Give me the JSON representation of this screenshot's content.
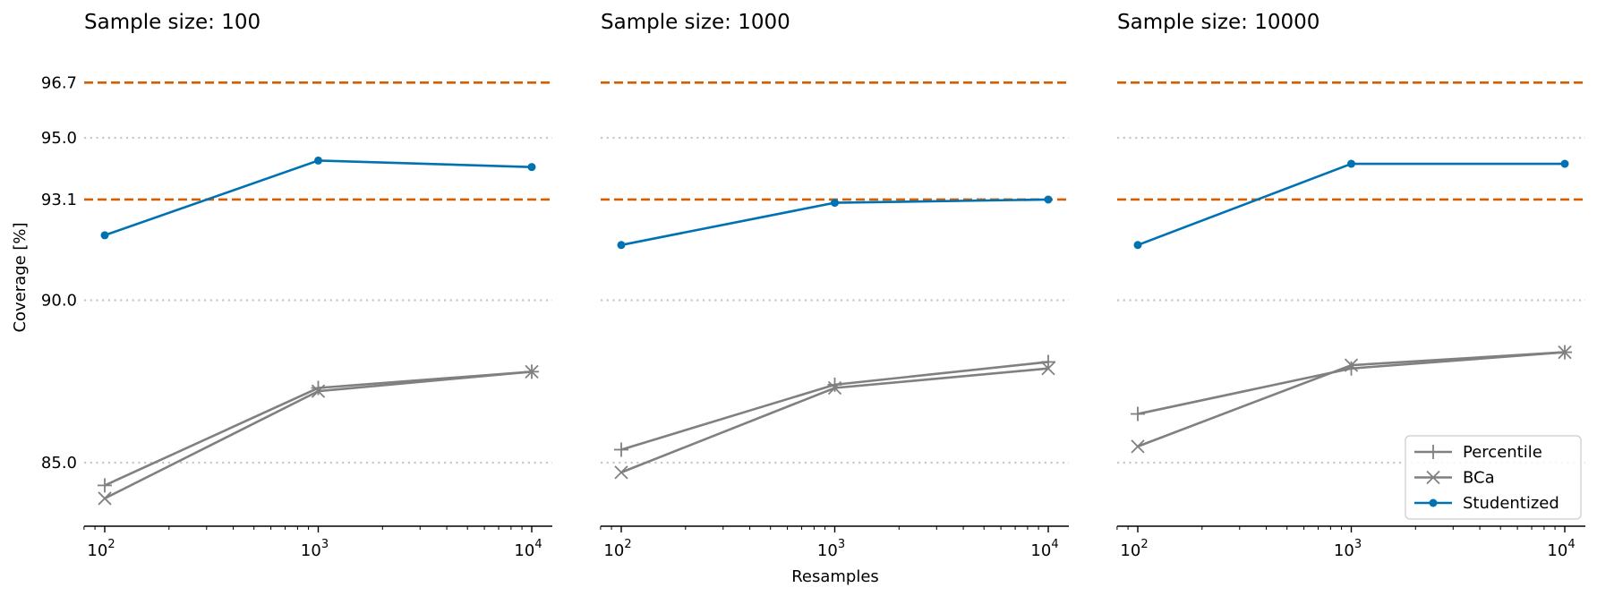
{
  "chart_data": {
    "type": "line",
    "xlabel": "Resamples",
    "ylabel": "Coverage [%]",
    "xscale": "log",
    "x": [
      100,
      1000,
      10000
    ],
    "xtick_labels": [
      {
        "base": "10",
        "exp": "2"
      },
      {
        "base": "10",
        "exp": "3"
      },
      {
        "base": "10",
        "exp": "4"
      }
    ],
    "ylim": [
      83,
      97.5
    ],
    "yticks": [
      85.0,
      90.0,
      93.1,
      95.0,
      96.7
    ],
    "ytick_labels": [
      "85.0",
      "90.0",
      "93.1",
      "95.0",
      "96.7"
    ],
    "reference_lines": {
      "dashed": [
        93.1,
        96.7
      ],
      "dotted": [
        85.0,
        90.0,
        95.0
      ]
    },
    "legend": {
      "location": "lower right",
      "entries": [
        "Percentile",
        "BCa",
        "Studentized"
      ]
    },
    "colors": {
      "gray": "#808080",
      "blue": "#0072b2",
      "orange": "#d55e00",
      "dotted": "#c8c8c8"
    },
    "panels": [
      {
        "title": "Sample size: 100",
        "series": [
          {
            "name": "Percentile",
            "values": [
              84.3,
              87.3,
              87.8
            ]
          },
          {
            "name": "BCa",
            "values": [
              83.9,
              87.2,
              87.8
            ]
          },
          {
            "name": "Studentized",
            "values": [
              92.0,
              94.3,
              94.1
            ]
          }
        ]
      },
      {
        "title": "Sample size: 1000",
        "series": [
          {
            "name": "Percentile",
            "values": [
              85.4,
              87.4,
              88.1
            ]
          },
          {
            "name": "BCa",
            "values": [
              84.7,
              87.3,
              87.9
            ]
          },
          {
            "name": "Studentized",
            "values": [
              91.7,
              93.0,
              93.1
            ]
          }
        ]
      },
      {
        "title": "Sample size: 10000",
        "series": [
          {
            "name": "Percentile",
            "values": [
              86.5,
              87.9,
              88.4
            ]
          },
          {
            "name": "BCa",
            "values": [
              85.5,
              88.0,
              88.4
            ]
          },
          {
            "name": "Studentized",
            "values": [
              91.7,
              94.2,
              94.2
            ]
          }
        ]
      }
    ]
  }
}
